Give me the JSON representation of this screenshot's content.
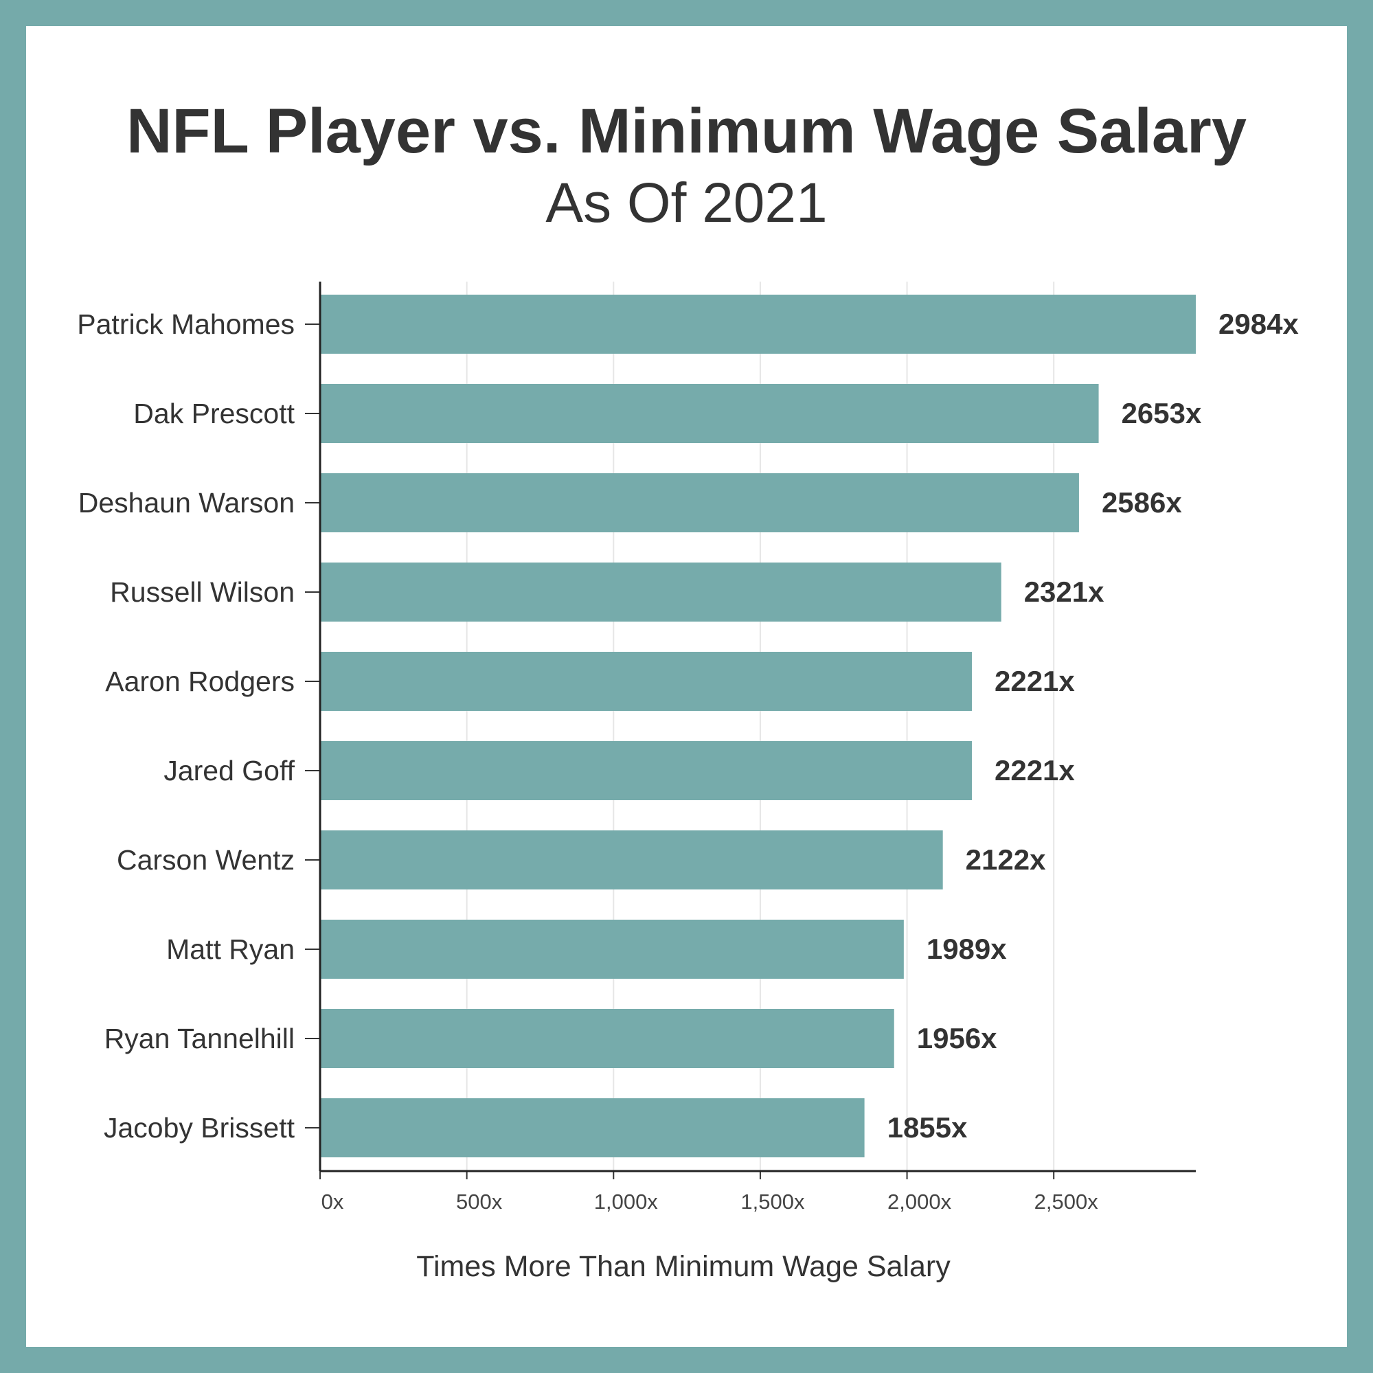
{
  "title": "NFL Player vs. Minimum Wage Salary",
  "subtitle": "As Of 2021",
  "colors": {
    "frame": "#75aaaa",
    "bar": "#76abab",
    "text": "#333333",
    "grid": "#e6e6e6"
  },
  "chart_data": {
    "type": "bar",
    "orientation": "horizontal",
    "title": "NFL Player vs. Minimum Wage Salary",
    "subtitle": "As Of 2021",
    "xlabel": "Times More Than Minimum Wage Salary",
    "ylabel": "",
    "xlim": [
      0,
      2984
    ],
    "xticks": [
      0,
      500,
      1000,
      1500,
      2000,
      2500
    ],
    "xtick_labels": [
      "0x",
      "500x",
      "1,000x",
      "1,500x",
      "2,000x",
      "2,500x"
    ],
    "grid": "vertical",
    "categories": [
      "Patrick Mahomes",
      "Dak Prescott",
      "Deshaun Warson",
      "Russell Wilson",
      "Aaron Rodgers",
      "Jared Goff",
      "Carson Wentz",
      "Matt Ryan",
      "Ryan Tannelhill",
      "Jacoby Brissett"
    ],
    "values": [
      2984,
      2653,
      2586,
      2321,
      2221,
      2221,
      2122,
      1989,
      1956,
      1855
    ],
    "value_labels": [
      "2984x",
      "2653x",
      "2586x",
      "2321x",
      "2221x",
      "2221x",
      "2122x",
      "1989x",
      "1956x",
      "1855x"
    ]
  }
}
